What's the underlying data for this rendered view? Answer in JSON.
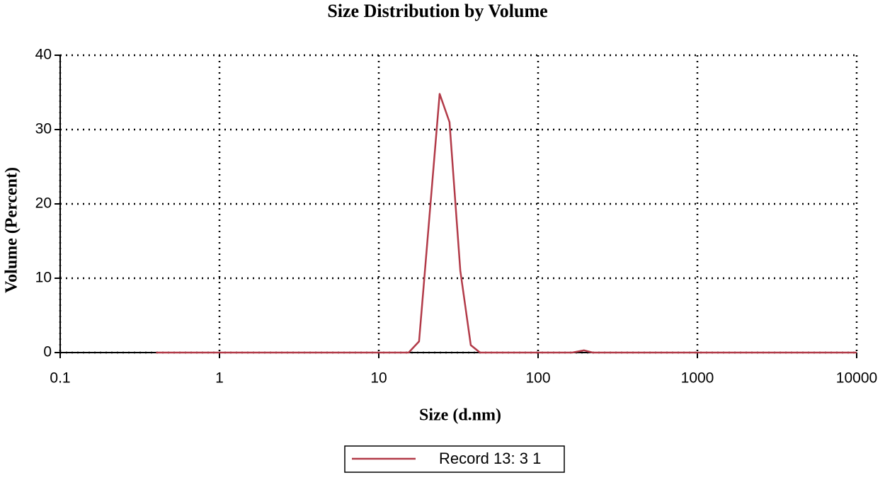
{
  "chart_data": {
    "type": "line",
    "title": "Size Distribution  by Volume",
    "x_label": "Size (d.nm)",
    "y_label": "Volume (Percent)",
    "xscale": "log",
    "grid": true,
    "xlim": [
      0.1,
      10000
    ],
    "xticks": [
      0.1,
      1,
      10,
      100,
      1000,
      10000
    ],
    "ylim": [
      0,
      40
    ],
    "yticks": [
      0,
      10,
      20,
      30,
      40
    ],
    "legend": "bottom",
    "series": [
      {
        "name": "Record 13: 3 1",
        "color": "#b23a48",
        "x": [
          0.4,
          15.4,
          17.9,
          24.1,
          27.8,
          32.5,
          37.8,
          43.2,
          164,
          194,
          220,
          10000
        ],
        "values": [
          0,
          0,
          1.5,
          34.8,
          31,
          11,
          1,
          0,
          0,
          0.3,
          0,
          0
        ]
      }
    ]
  }
}
